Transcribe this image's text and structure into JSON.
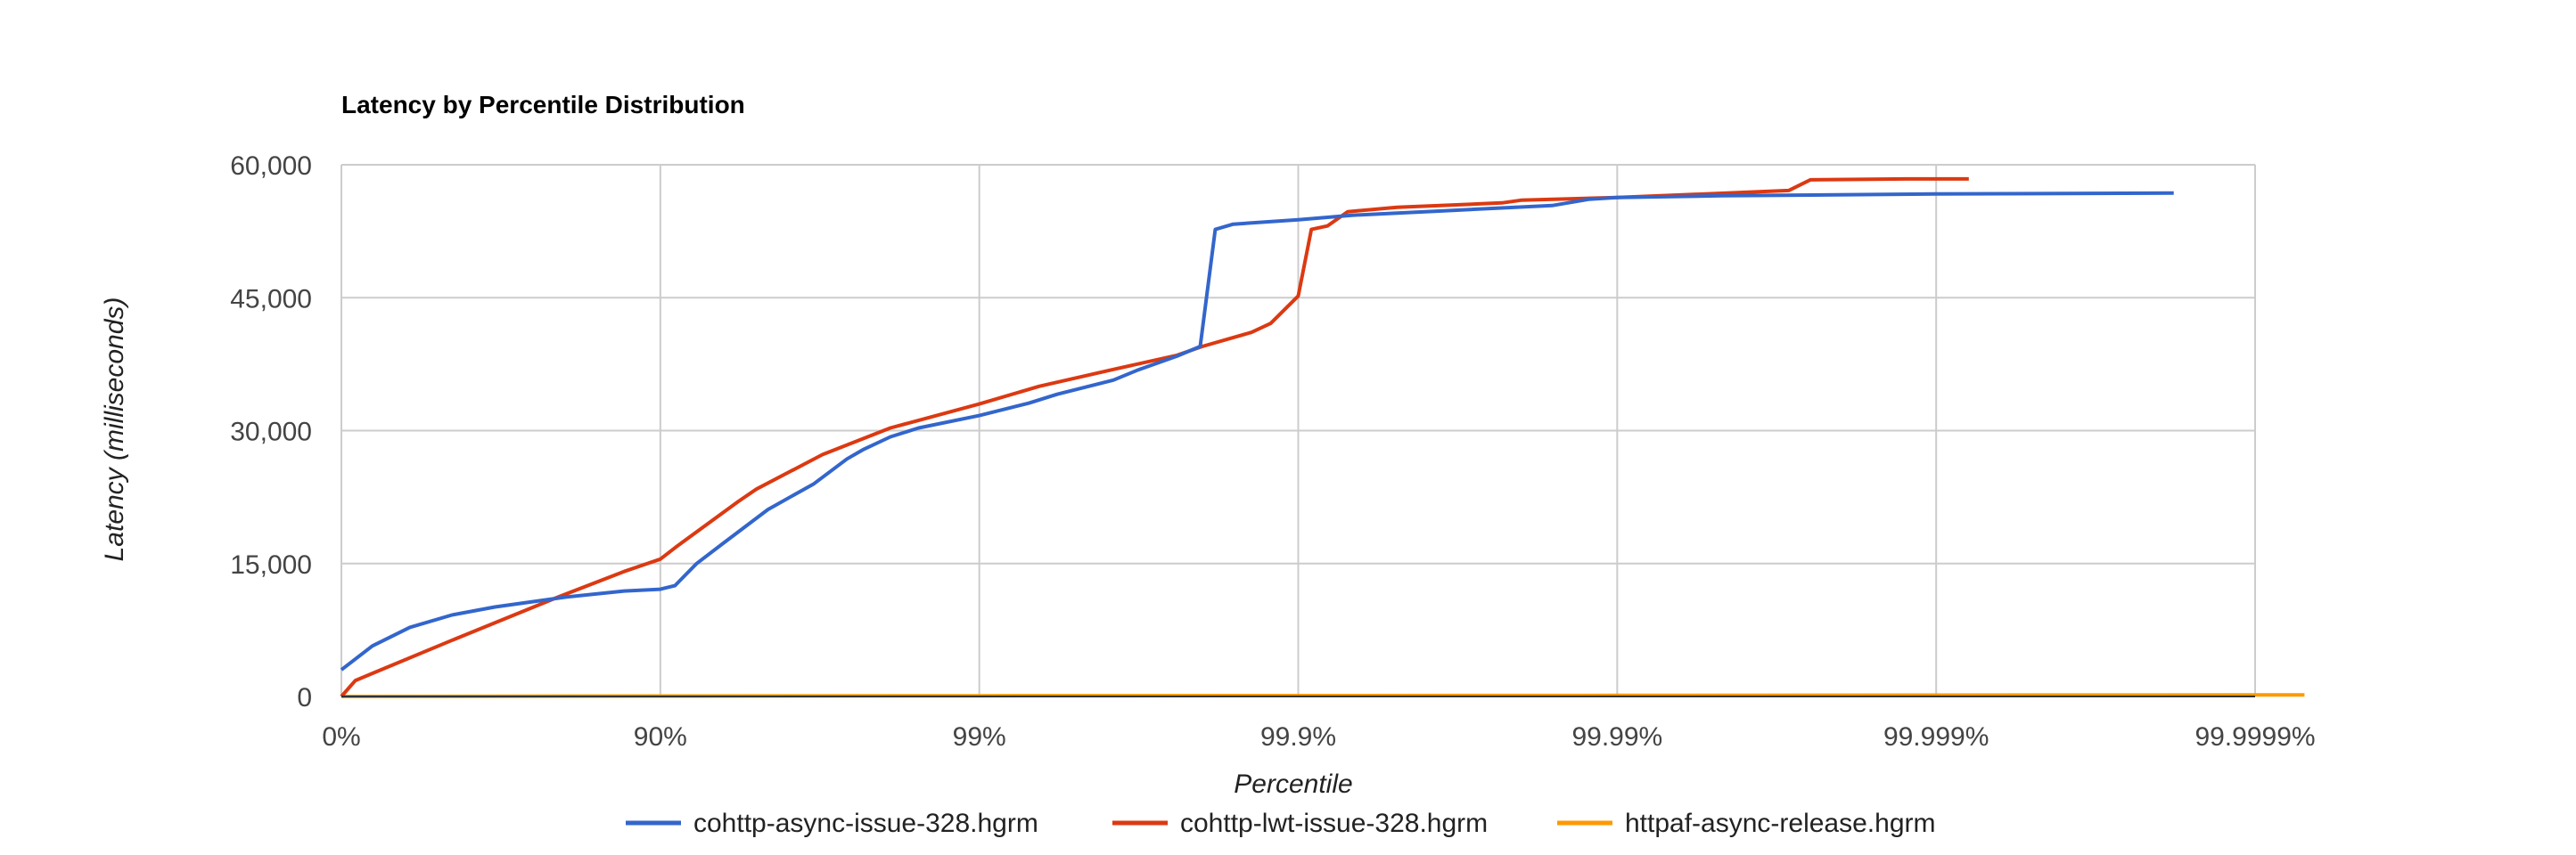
{
  "chart_data": {
    "type": "line",
    "title": "Latency by Percentile Distribution",
    "xlabel": "Percentile",
    "ylabel": "Latency (milliseconds)",
    "x_scale": "log of 1/(1 - percentile)",
    "x_ticks": [
      "0%",
      "90%",
      "99%",
      "99.9%",
      "99.99%",
      "99.999%",
      "99.9999%"
    ],
    "y_ticks": [
      "0",
      "15,000",
      "30,000",
      "45,000",
      "60,000"
    ],
    "y_tick_values": [
      0,
      15000,
      30000,
      45000,
      60000
    ],
    "ylim": [
      0,
      60000
    ],
    "grid": true,
    "legend_position": "bottom",
    "series": [
      {
        "name": "cohttp-async-issue-328.hgrm",
        "color": "#3366cc",
        "points": [
          [
            0,
            3000
          ],
          [
            20,
            5700
          ],
          [
            39,
            7800
          ],
          [
            55,
            9200
          ],
          [
            67,
            10100
          ],
          [
            80,
            11200
          ],
          [
            87,
            11900
          ],
          [
            90,
            12100
          ],
          [
            91,
            12500
          ],
          [
            92.3,
            15000
          ],
          [
            93.6,
            17200
          ],
          [
            95.4,
            21100
          ],
          [
            96.7,
            24000
          ],
          [
            97.4,
            26800
          ],
          [
            97.7,
            27900
          ],
          [
            98.1,
            29300
          ],
          [
            98.45,
            30300
          ],
          [
            99,
            31700
          ],
          [
            99.3,
            33100
          ],
          [
            99.43,
            34100
          ],
          [
            99.62,
            35700
          ],
          [
            99.68,
            36800
          ],
          [
            99.76,
            38400
          ],
          [
            99.797,
            39500
          ],
          [
            99.818,
            52700
          ],
          [
            99.84,
            53300
          ],
          [
            99.9,
            53800
          ],
          [
            99.932,
            54300
          ],
          [
            99.965,
            54800
          ],
          [
            99.984,
            55400
          ],
          [
            99.9877,
            56100
          ],
          [
            99.99,
            56300
          ],
          [
            99.9953,
            56500
          ],
          [
            99.999,
            56700
          ],
          [
            99.99982,
            56800
          ]
        ]
      },
      {
        "name": "cohttp-lwt-issue-328.hgrm",
        "color": "#dc3912",
        "points": [
          [
            0,
            0
          ],
          [
            9.6,
            1800
          ],
          [
            20,
            2600
          ],
          [
            54,
            6200
          ],
          [
            79,
            11200
          ],
          [
            87,
            14100
          ],
          [
            90,
            15500
          ],
          [
            91.1,
            16900
          ],
          [
            94.3,
            22000
          ],
          [
            95,
            23400
          ],
          [
            96.9,
            27300
          ],
          [
            98.1,
            30300
          ],
          [
            99,
            33000
          ],
          [
            99.35,
            35000
          ],
          [
            99.62,
            36900
          ],
          [
            99.76,
            38500
          ],
          [
            99.8,
            39500
          ],
          [
            99.86,
            41100
          ],
          [
            99.878,
            42100
          ],
          [
            99.9,
            45200
          ],
          [
            99.909,
            52700
          ],
          [
            99.919,
            53100
          ],
          [
            99.93,
            54700
          ],
          [
            99.951,
            55200
          ],
          [
            99.977,
            55700
          ],
          [
            99.98,
            56000
          ],
          [
            99.99,
            56300
          ],
          [
            99.9971,
            57100
          ],
          [
            99.99752,
            58300
          ],
          [
            99.99876,
            58400
          ],
          [
            99.99921,
            58400
          ]
        ]
      },
      {
        "name": "httpaf-async-release.hgrm",
        "color": "#ff9900",
        "points": [
          [
            0,
            0
          ],
          [
            90,
            50
          ],
          [
            99,
            80
          ],
          [
            99.9,
            100
          ],
          [
            99.99,
            120
          ],
          [
            99.999,
            150
          ],
          [
            99.9999,
            170
          ],
          [
            99.99993,
            180
          ]
        ]
      }
    ]
  }
}
